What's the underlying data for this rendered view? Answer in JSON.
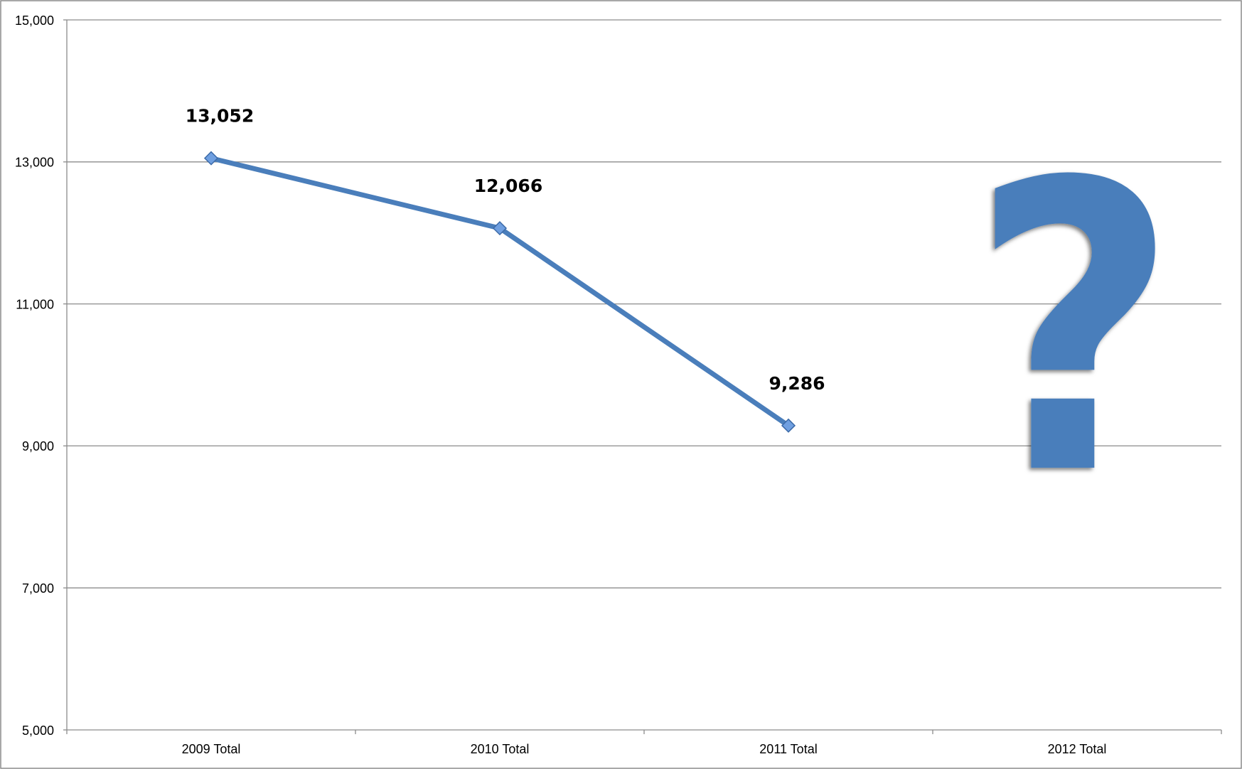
{
  "chart_data": {
    "type": "line",
    "categories": [
      "2009 Total",
      "2010 Total",
      "2011 Total",
      "2012 Total"
    ],
    "values": [
      13052,
      12066,
      9286,
      null
    ],
    "value_labels": [
      "13,052",
      "12,066",
      "9,286",
      null
    ],
    "color": "#4a7ebb",
    "ylim": [
      5000,
      15000
    ],
    "yticks": [
      {
        "value": 5000,
        "label": "5,000"
      },
      {
        "value": 7000,
        "label": "7,000"
      },
      {
        "value": 9000,
        "label": "9,000"
      },
      {
        "value": 11000,
        "label": "11,000"
      },
      {
        "value": 13000,
        "label": "13,000"
      },
      {
        "value": 15000,
        "label": "15,000"
      }
    ],
    "grid": true,
    "annotation": "?"
  }
}
